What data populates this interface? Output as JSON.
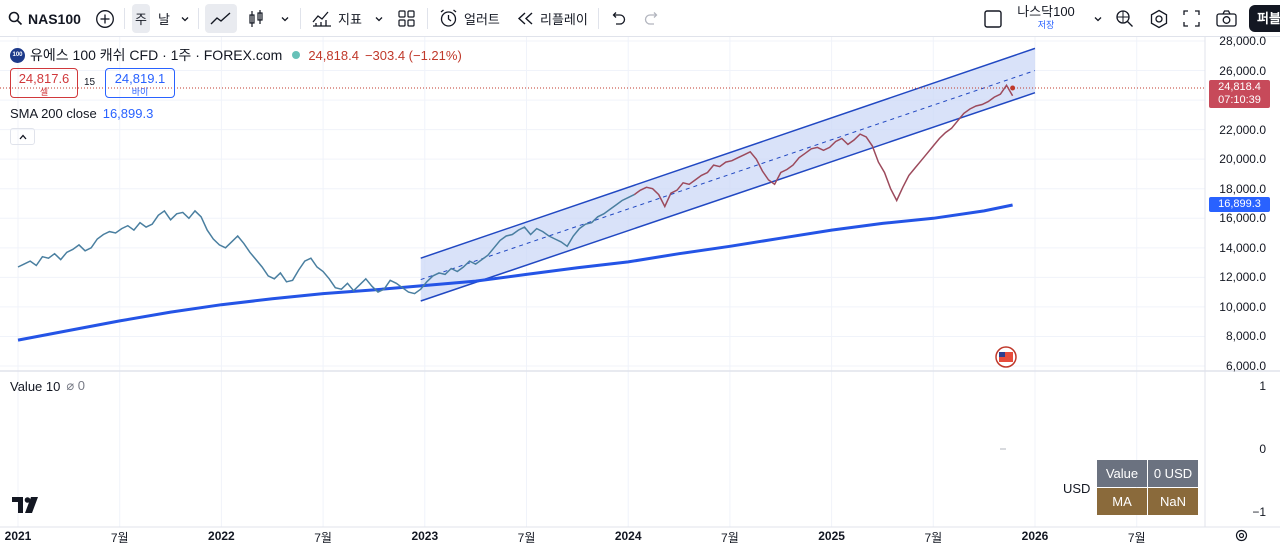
{
  "toolbar": {
    "symbol": "NAS100",
    "res_week": "주",
    "res_day": "날",
    "indicators_label": "지표",
    "alert_label": "얼러트",
    "replay_label": "리플레이",
    "layout_name": "나스닥100",
    "layout_saved": "저장",
    "publish_label": "퍼블",
    "icons": [
      "search-icon",
      "plus-circle-icon",
      "chevron-down-icon",
      "line-chart-icon",
      "candles-icon",
      "indicators-icon",
      "templates-icon",
      "alert-clock-icon",
      "replay-icon",
      "undo-icon",
      "redo-icon",
      "checkbox-icon",
      "chevron-down-icon",
      "crosshair-icon",
      "settings-icon",
      "fullscreen-icon",
      "camera-icon"
    ]
  },
  "legend": {
    "logo_text": "100",
    "title": "유에스 100 캐쉬 CFD · 1주 · FOREX.com",
    "price": "24,818.4",
    "change": "−303.4 (−1.21%)",
    "sell_value": "24,817.6",
    "sell_label": "셀",
    "spread": "15",
    "buy_value": "24,819.1",
    "buy_label": "바이",
    "sma_name": "SMA 200 close",
    "sma_value": "16,899.3"
  },
  "indicator_pane": {
    "name": "Value 10",
    "suffix": "⌀ 0",
    "yticks": [
      "1",
      "0",
      "−1"
    ]
  },
  "price_axis": {
    "ticks": [
      "28,000.0",
      "26,000.0",
      "24,000.0",
      "22,000.0",
      "20,000.0",
      "18,000.0",
      "16,000.0",
      "14,000.0",
      "12,000.0",
      "10,000.0",
      "8,000.0",
      "6,000.0"
    ],
    "last_price": "24,818.4",
    "countdown": "07:10:39",
    "sma_tag": "16,899.3"
  },
  "time_axis": {
    "ticks": [
      {
        "label": "2021",
        "bold": true
      },
      {
        "label": "7월",
        "bold": false
      },
      {
        "label": "2022",
        "bold": true
      },
      {
        "label": "7월",
        "bold": false
      },
      {
        "label": "2023",
        "bold": true
      },
      {
        "label": "7월",
        "bold": false
      },
      {
        "label": "2024",
        "bold": true
      },
      {
        "label": "7월",
        "bold": false
      },
      {
        "label": "2025",
        "bold": true
      },
      {
        "label": "7월",
        "bold": false
      },
      {
        "label": "2026",
        "bold": true
      },
      {
        "label": "7월",
        "bold": false
      }
    ]
  },
  "data_window": {
    "currency": "USD",
    "cells": [
      [
        "Value",
        "0 USD"
      ],
      [
        "MA",
        "NaN"
      ]
    ]
  },
  "colors": {
    "price_line": "#4a7fa0",
    "price_line_recent": "#9c4a5c",
    "sma": "#2454e6",
    "channel_fill": "#c9d6f7",
    "channel_edge": "#2148c2",
    "down": "#c0392b"
  },
  "chart_data": {
    "type": "line",
    "title": "유에스 100 캐쉬 CFD · 1주 · FOREX.com",
    "x_unit": "year",
    "ylim": [
      5800,
      28600
    ],
    "series": [
      {
        "name": "NAS100",
        "x": [
          2021.0,
          2021.03,
          2021.06,
          2021.09,
          2021.12,
          2021.15,
          2021.18,
          2021.21,
          2021.24,
          2021.27,
          2021.3,
          2021.33,
          2021.36,
          2021.39,
          2021.42,
          2021.45,
          2021.48,
          2021.51,
          2021.54,
          2021.57,
          2021.6,
          2021.63,
          2021.66,
          2021.69,
          2021.72,
          2021.75,
          2021.78,
          2021.81,
          2021.84,
          2021.87,
          2021.9,
          2021.93,
          2021.96,
          2021.99,
          2022.02,
          2022.05,
          2022.08,
          2022.11,
          2022.14,
          2022.17,
          2022.2,
          2022.23,
          2022.26,
          2022.29,
          2022.32,
          2022.35,
          2022.38,
          2022.41,
          2022.44,
          2022.47,
          2022.5,
          2022.53,
          2022.56,
          2022.59,
          2022.62,
          2022.65,
          2022.68,
          2022.71,
          2022.74,
          2022.77,
          2022.8,
          2022.83,
          2022.86,
          2022.89,
          2022.92,
          2022.95,
          2022.98,
          2023.01,
          2023.04,
          2023.07,
          2023.1,
          2023.13,
          2023.16,
          2023.19,
          2023.22,
          2023.25,
          2023.28,
          2023.31,
          2023.34,
          2023.37,
          2023.4,
          2023.43,
          2023.46,
          2023.49,
          2023.52,
          2023.55,
          2023.58,
          2023.61,
          2023.64,
          2023.67,
          2023.7,
          2023.73,
          2023.76,
          2023.79,
          2023.82,
          2023.85,
          2023.88,
          2023.91,
          2023.94,
          2023.97,
          2024.0,
          2024.03,
          2024.06,
          2024.09,
          2024.12,
          2024.15,
          2024.18,
          2024.21,
          2024.24,
          2024.27,
          2024.3,
          2024.33,
          2024.36,
          2024.39,
          2024.42,
          2024.45,
          2024.48,
          2024.51,
          2024.54,
          2024.57,
          2024.6,
          2024.63,
          2024.66,
          2024.69,
          2024.72,
          2024.75,
          2024.78,
          2024.81,
          2024.84,
          2024.87,
          2024.9,
          2024.93,
          2024.96,
          2024.99,
          2025.02,
          2025.05,
          2025.08,
          2025.11,
          2025.14,
          2025.17,
          2025.2,
          2025.23,
          2025.26,
          2025.29,
          2025.32,
          2025.35,
          2025.38,
          2025.41,
          2025.44,
          2025.47,
          2025.5,
          2025.53,
          2025.56,
          2025.59,
          2025.62,
          2025.65,
          2025.68,
          2025.71,
          2025.74,
          2025.77,
          2025.8,
          2025.83,
          2025.86,
          2025.89
        ],
        "values": [
          12700,
          12900,
          13100,
          12800,
          13400,
          13300,
          13600,
          13200,
          13700,
          13900,
          14200,
          13800,
          14000,
          14600,
          14900,
          15100,
          15000,
          15300,
          15500,
          15200,
          15700,
          15400,
          15600,
          16200,
          16500,
          15900,
          16300,
          16400,
          16000,
          16500,
          16100,
          15200,
          14600,
          14200,
          14000,
          14400,
          14800,
          14300,
          13700,
          13200,
          12700,
          12100,
          11900,
          12300,
          11700,
          11800,
          12500,
          13100,
          13300,
          12700,
          12400,
          11900,
          11300,
          11200,
          11600,
          11100,
          11500,
          11900,
          11400,
          11000,
          11200,
          11800,
          11600,
          11300,
          11000,
          10900,
          11200,
          11700,
          12100,
          12300,
          12200,
          12600,
          12400,
          12700,
          13100,
          12900,
          13200,
          13500,
          14000,
          14500,
          14800,
          14900,
          15200,
          15400,
          14900,
          15300,
          15100,
          14800,
          14600,
          14400,
          14100,
          14800,
          15300,
          15600,
          15700,
          16100,
          16300,
          16600,
          16900,
          17200,
          17400,
          17600,
          17900,
          18100,
          18000,
          17600,
          16800,
          17700,
          17900,
          18400,
          18300,
          18600,
          18900,
          19100,
          19600,
          19500,
          19800,
          19900,
          20100,
          20300,
          20500,
          20000,
          19200,
          18600,
          18300,
          19100,
          19300,
          19600,
          20100,
          20400,
          20700,
          20800,
          20600,
          20800,
          21200,
          21400,
          21000,
          21300,
          21700,
          21500,
          20900,
          19800,
          19100,
          18000,
          17200,
          18100,
          18900,
          19400,
          19900,
          20400,
          20900,
          21400,
          21800,
          22100,
          22600,
          23100,
          23400,
          23600,
          23700,
          23900,
          24200,
          24400,
          25000,
          24300
        ],
        "values_color_split_index": 101
      },
      {
        "name": "SMA 200 close",
        "x": [
          2021.0,
          2021.25,
          2021.5,
          2021.75,
          2022.0,
          2022.25,
          2022.5,
          2022.75,
          2023.0,
          2023.25,
          2023.5,
          2023.75,
          2024.0,
          2024.25,
          2024.5,
          2024.75,
          2025.0,
          2025.25,
          2025.5,
          2025.75,
          2025.89
        ],
        "values": [
          7750,
          8400,
          9050,
          9650,
          10150,
          10550,
          10900,
          11150,
          11450,
          11750,
          12200,
          12650,
          13050,
          13600,
          14100,
          14650,
          15200,
          15650,
          16000,
          16500,
          16899.3
        ]
      }
    ],
    "channel": {
      "x": [
        2022.98,
        2026.0
      ],
      "upper": [
        13300,
        27500
      ],
      "lower": [
        10400,
        24500
      ],
      "mid": [
        11850,
        26000
      ]
    }
  }
}
